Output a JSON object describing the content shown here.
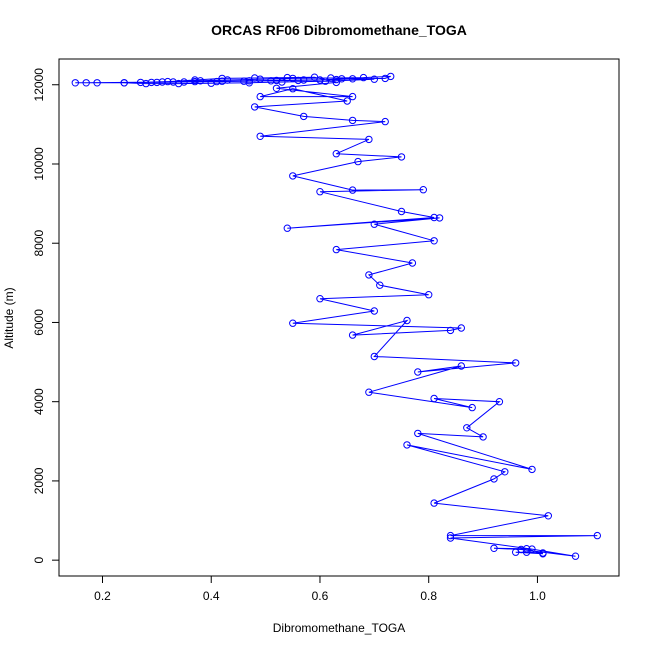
{
  "chart_data": {
    "type": "line",
    "title": "ORCAS RF06 Dibromomethane_TOGA",
    "xlabel": "Dibromomethane_TOGA",
    "ylabel": "Altitude (m)",
    "xlim": [
      0.12,
      1.15
    ],
    "ylim": [
      -400,
      12650
    ],
    "xticks": [
      0.2,
      0.4,
      0.6,
      0.8,
      1.0
    ],
    "xtick_labels": [
      "0.2",
      "0.4",
      "0.6",
      "0.8",
      "1.0"
    ],
    "yticks": [
      0,
      2000,
      4000,
      6000,
      8000,
      10000,
      12000
    ],
    "ytick_labels": [
      "0",
      "2000",
      "4000",
      "6000",
      "8000",
      "10000",
      "12000"
    ],
    "grid": false,
    "colors": {
      "series": "#0000ff",
      "axes": "#000000"
    },
    "series": [
      {
        "marker": "open-circle",
        "x": [
          0.15,
          0.19,
          0.24,
          0.29,
          0.33,
          0.37,
          0.42,
          0.47,
          0.52,
          0.57,
          0.63,
          0.66,
          0.72,
          0.73,
          0.68,
          0.62,
          0.55,
          0.49,
          0.43,
          0.38,
          0.32,
          0.27,
          0.3,
          0.35,
          0.41,
          0.46,
          0.51,
          0.56,
          0.6,
          0.64,
          0.7,
          0.61,
          0.53,
          0.47,
          0.4,
          0.34,
          0.28,
          0.24,
          0.17,
          0.31,
          0.37,
          0.42,
          0.48,
          0.54,
          0.59,
          0.63,
          0.52,
          0.66,
          0.49,
          0.55,
          0.65,
          0.48,
          0.57,
          0.66,
          0.72,
          0.49,
          0.69,
          0.63,
          0.75,
          0.67,
          0.55,
          0.66,
          0.79,
          0.6,
          0.75,
          0.81,
          0.54,
          0.82,
          0.7,
          0.81,
          0.63,
          0.77,
          0.69,
          0.71,
          0.8,
          0.6,
          0.7,
          0.55,
          0.86,
          0.84,
          0.66,
          0.76,
          0.7,
          0.96,
          0.78,
          0.86,
          0.69,
          0.88,
          0.81,
          0.93,
          0.87,
          0.9,
          0.78,
          0.99,
          0.76,
          0.94,
          0.92,
          0.81,
          1.02,
          0.84,
          1.11,
          0.84,
          0.99,
          1.07,
          0.97,
          0.92,
          0.98,
          1.01,
          0.96,
          0.98,
          1.01
        ],
        "y": [
          12050,
          12050,
          12050,
          12060,
          12070,
          12080,
          12090,
          12100,
          12110,
          12120,
          12130,
          12150,
          12160,
          12210,
          12180,
          12170,
          12160,
          12140,
          12120,
          12100,
          12080,
          12060,
          12060,
          12070,
          12080,
          12090,
          12100,
          12110,
          12120,
          12150,
          12140,
          12090,
          12070,
          12050,
          12040,
          12030,
          12030,
          12050,
          12050,
          12070,
          12120,
          12160,
          12170,
          12180,
          12190,
          12060,
          11910,
          11700,
          11700,
          11900,
          11590,
          11440,
          11200,
          11100,
          11070,
          10700,
          10620,
          10260,
          10180,
          10060,
          9700,
          9340,
          9350,
          9300,
          8800,
          8650,
          8380,
          8640,
          8480,
          8060,
          7840,
          7500,
          7200,
          6940,
          6700,
          6600,
          6290,
          5980,
          5860,
          5800,
          5680,
          6050,
          5140,
          4980,
          4750,
          4900,
          4240,
          3850,
          4080,
          4000,
          3340,
          3110,
          3200,
          2290,
          2910,
          2230,
          2050,
          1440,
          1120,
          620,
          620,
          560,
          280,
          100,
          270,
          300,
          290,
          160,
          200,
          200,
          180
        ]
      }
    ]
  }
}
